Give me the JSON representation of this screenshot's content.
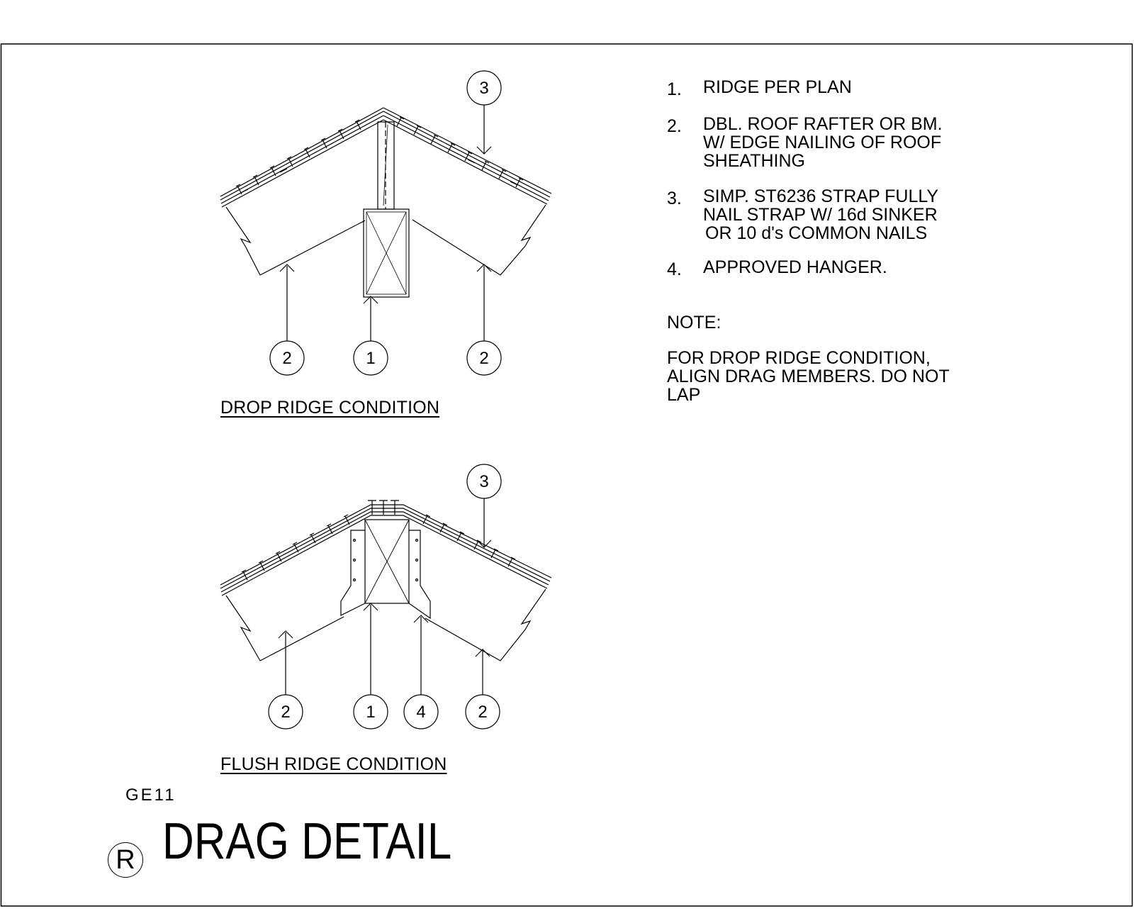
{
  "notes": [
    {
      "num": "1.",
      "lines": [
        "RIDGE PER PLAN"
      ]
    },
    {
      "num": "2.",
      "lines": [
        "DBL. ROOF RAFTER OR BM.",
        "W/ EDGE NAILING OF ROOF",
        "SHEATHING"
      ]
    },
    {
      "num": "3.",
      "lines": [
        "SIMP. ST6236 STRAP FULLY",
        "NAIL STRAP W/ 16d SINKER",
        "OR 10 d's COMMON NAILS"
      ]
    },
    {
      "num": "4.",
      "lines": [
        "APPROVED HANGER."
      ]
    }
  ],
  "note_heading": "NOTE:",
  "note_body": [
    "FOR DROP RIDGE CONDITION,",
    "ALIGN DRAG MEMBERS. DO NOT",
    "LAP"
  ],
  "details": {
    "drop": {
      "title": "DROP RIDGE CONDITION",
      "callouts": [
        "3",
        "2",
        "1",
        "2"
      ]
    },
    "flush": {
      "title": "FLUSH RIDGE CONDITION",
      "callouts": [
        "3",
        "2",
        "1",
        "4",
        "2"
      ]
    }
  },
  "sheet_id": "GE11",
  "drawing_title": "DRAG DETAIL",
  "revision_mark": "R"
}
